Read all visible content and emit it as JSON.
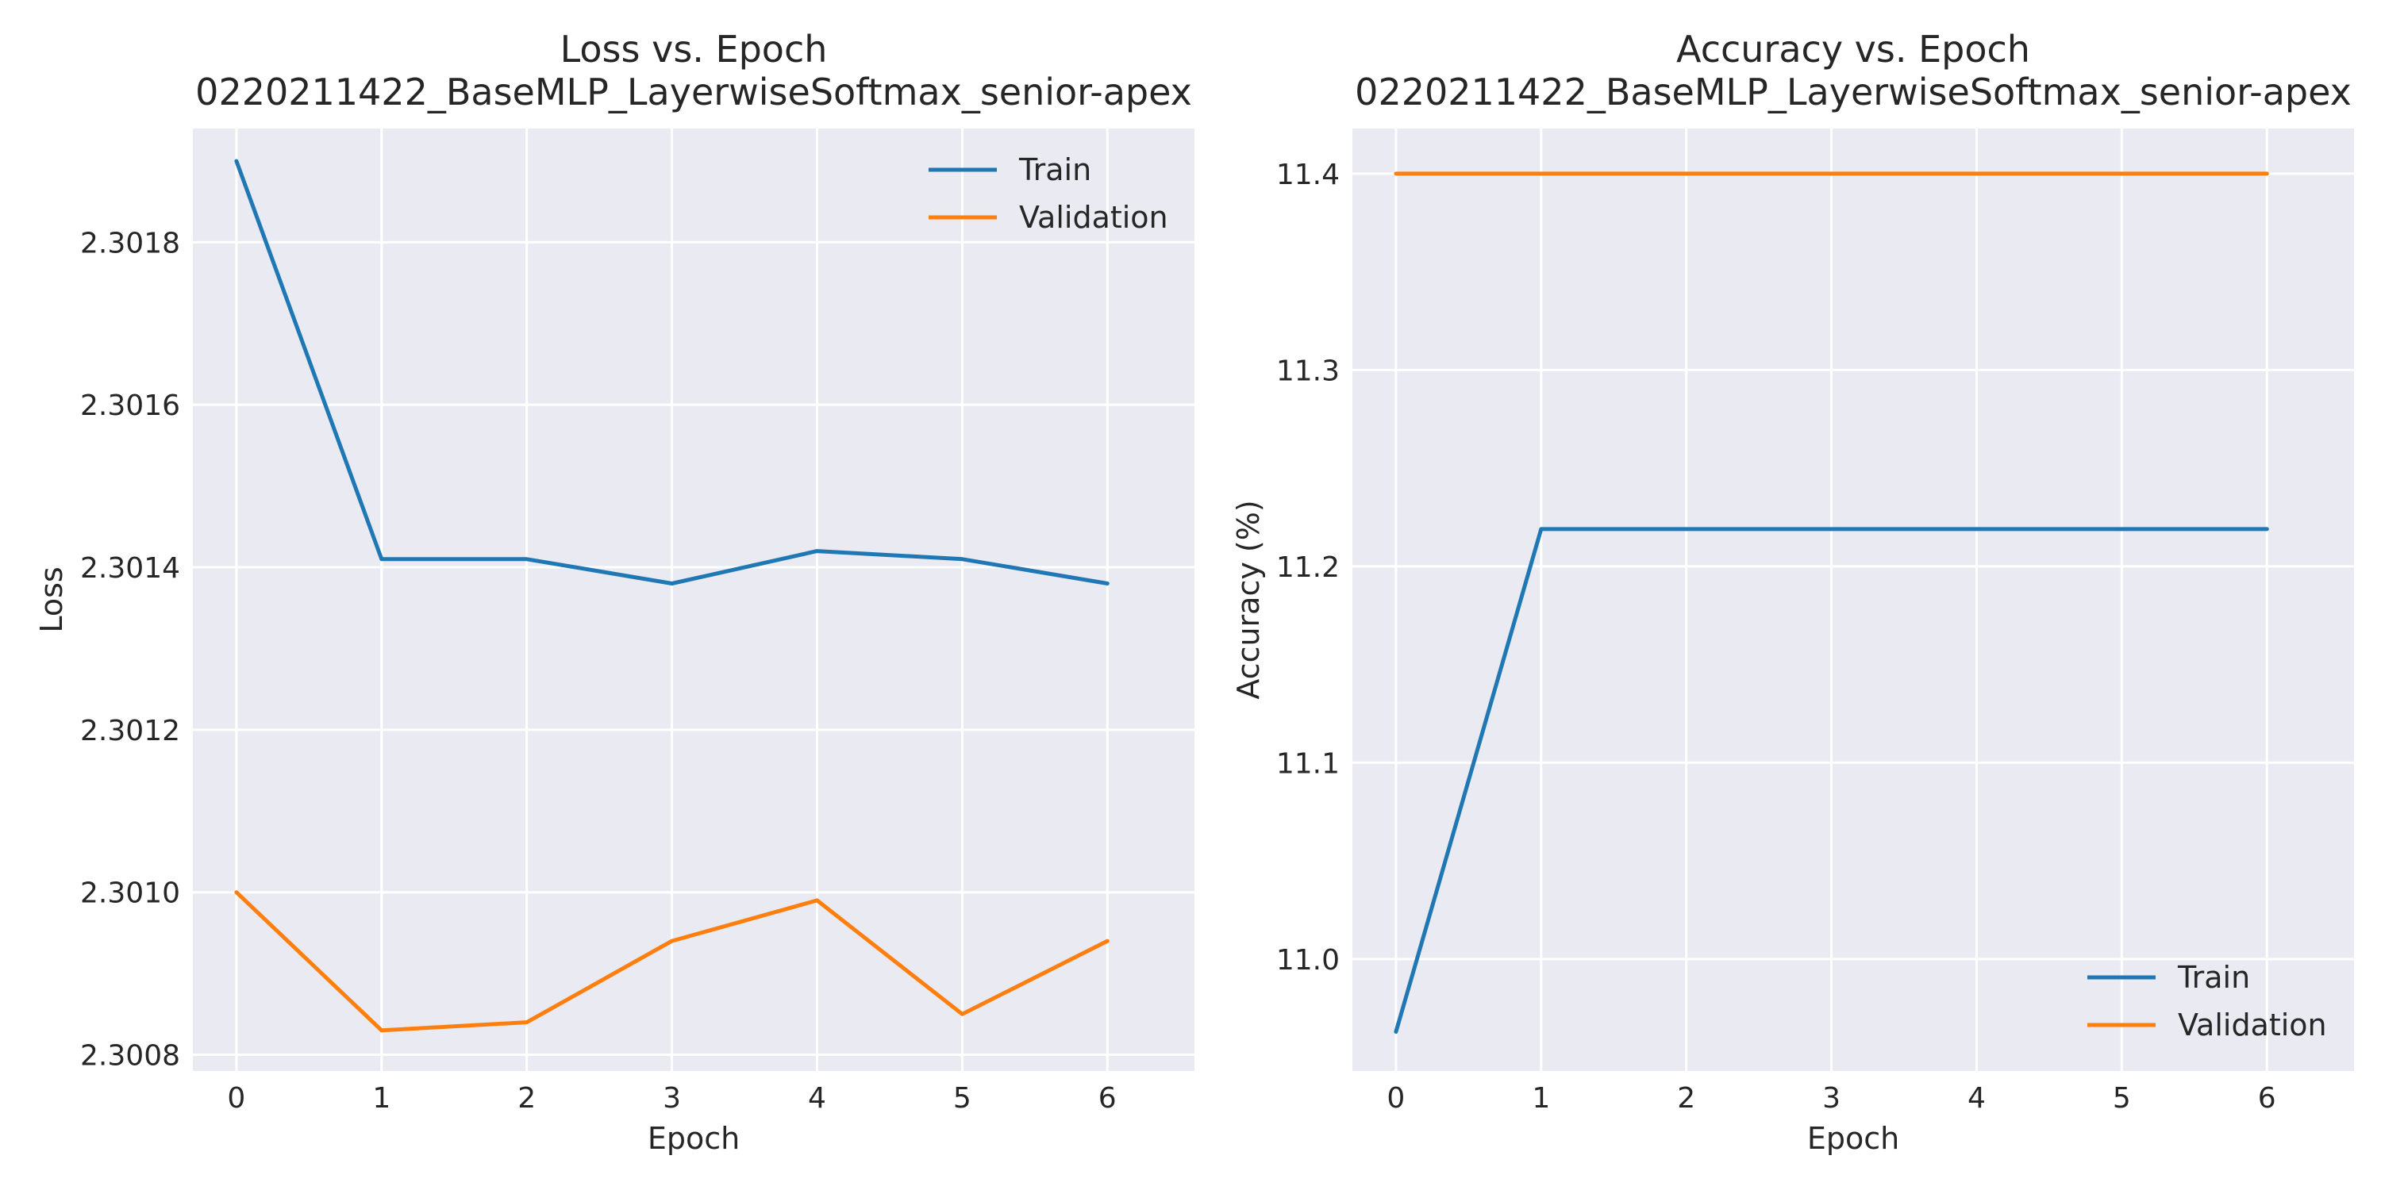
{
  "chart_data": [
    {
      "type": "line",
      "title": "Loss vs. Epoch",
      "subtitle": "0220211422_BaseMLP_LayerwiseSoftmax_senior-apex",
      "xlabel": "Epoch",
      "ylabel": "Loss",
      "x": [
        0,
        1,
        2,
        3,
        4,
        5,
        6
      ],
      "xticks": [
        "0",
        "1",
        "2",
        "3",
        "4",
        "5",
        "6"
      ],
      "xlim": [
        -0.3,
        6.6
      ],
      "ylim": [
        2.30078,
        2.30194
      ],
      "yticks": [
        2.3008,
        2.301,
        2.3012,
        2.3014,
        2.3016,
        2.3018
      ],
      "ytick_labels": [
        "2.3008",
        "2.3010",
        "2.3012",
        "2.3014",
        "2.3016",
        "2.3018"
      ],
      "grid": true,
      "legend_position": "top-right",
      "series": [
        {
          "name": "Train",
          "color": "#1f77b4",
          "values": [
            2.3019,
            2.30141,
            2.30141,
            2.30138,
            2.30142,
            2.30141,
            2.30138
          ]
        },
        {
          "name": "Validation",
          "color": "#ff7f0e",
          "values": [
            2.301,
            2.30083,
            2.30084,
            2.30094,
            2.30099,
            2.30085,
            2.30094
          ]
        }
      ]
    },
    {
      "type": "line",
      "title": "Accuracy vs. Epoch",
      "subtitle": "0220211422_BaseMLP_LayerwiseSoftmax_senior-apex",
      "xlabel": "Epoch",
      "ylabel": "Accuracy (%)",
      "x": [
        0,
        1,
        2,
        3,
        4,
        5,
        6
      ],
      "xticks": [
        "0",
        "1",
        "2",
        "3",
        "4",
        "5",
        "6"
      ],
      "xlim": [
        -0.3,
        6.6
      ],
      "ylim": [
        10.943,
        11.423
      ],
      "yticks": [
        11.0,
        11.1,
        11.2,
        11.3,
        11.4
      ],
      "ytick_labels": [
        "11.0",
        "11.1",
        "11.2",
        "11.3",
        "11.4"
      ],
      "grid": true,
      "legend_position": "bottom-right",
      "series": [
        {
          "name": "Train",
          "color": "#1f77b4",
          "values": [
            10.963,
            11.219,
            11.219,
            11.219,
            11.219,
            11.219,
            11.219
          ]
        },
        {
          "name": "Validation",
          "color": "#ff7f0e",
          "values": [
            11.4,
            11.4,
            11.4,
            11.4,
            11.4,
            11.4,
            11.4
          ]
        }
      ]
    }
  ]
}
